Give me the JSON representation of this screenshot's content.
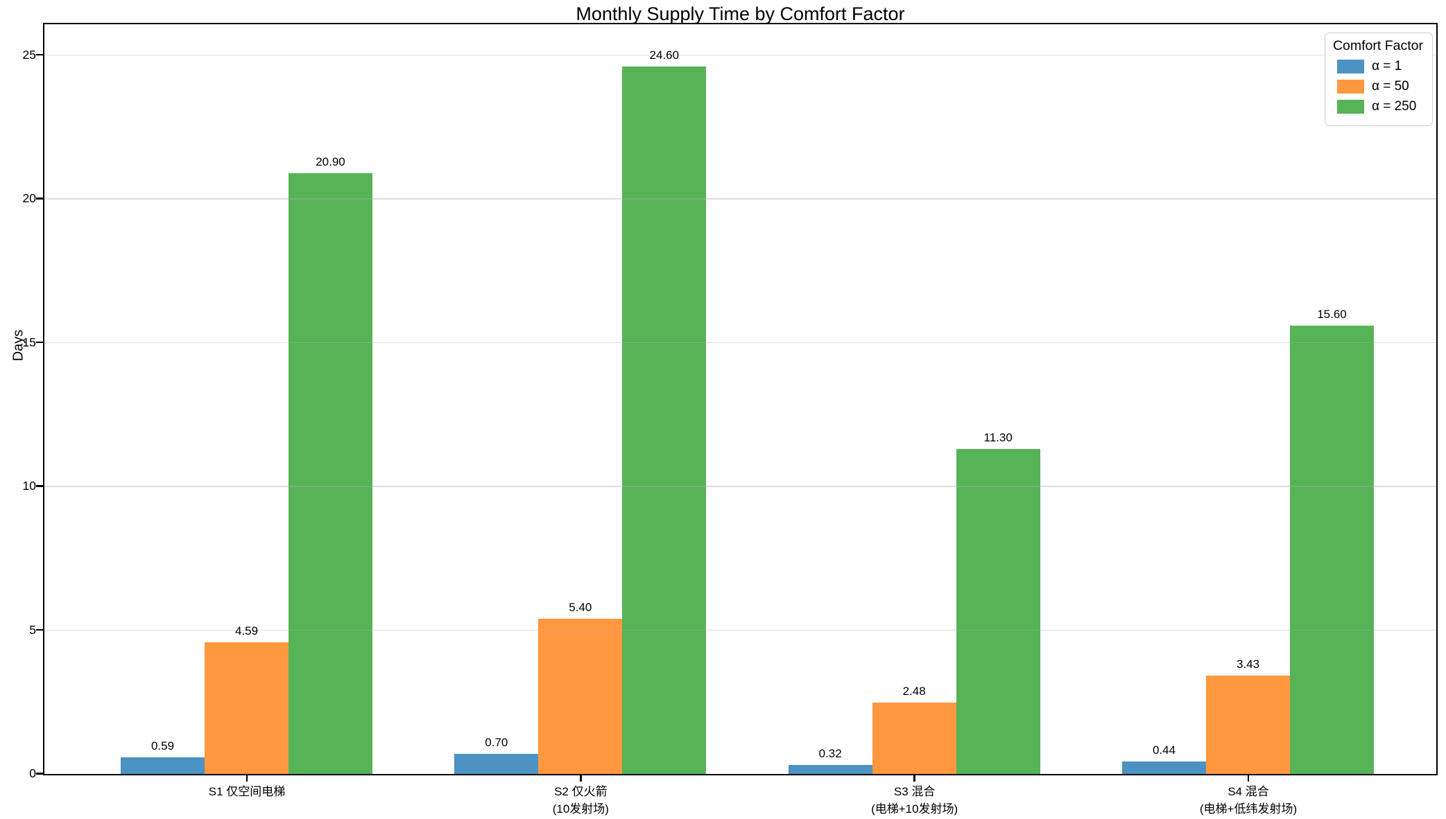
{
  "chart_data": {
    "type": "bar",
    "title": "Monthly Supply Time by Comfort Factor",
    "xlabel": "",
    "ylabel": "Days",
    "ylim": [
      0,
      26.05
    ],
    "yticks": [
      0,
      5,
      10,
      15,
      20,
      25
    ],
    "grid": true,
    "grid_color": "#b0b0b0",
    "legend_title": "Comfort Factor",
    "legend_position": "upper right",
    "value_label_format": "%.2f",
    "categories": [
      "S1 仅空间电梯",
      "S2 仅火箭\n(10发射场)",
      "S3 混合\n(电梯+10发射场)",
      "S4 混合\n(电梯+低纬发射场)"
    ],
    "series": [
      {
        "name": "α = 1",
        "color": "#4C92C3",
        "values": [
          0.59,
          0.7,
          0.32,
          0.44
        ]
      },
      {
        "name": "α = 50",
        "color": "#FF983E",
        "values": [
          4.59,
          5.4,
          2.48,
          3.43
        ]
      },
      {
        "name": "α = 250",
        "color": "#56B356",
        "values": [
          20.9,
          24.6,
          11.3,
          15.6
        ]
      }
    ]
  }
}
